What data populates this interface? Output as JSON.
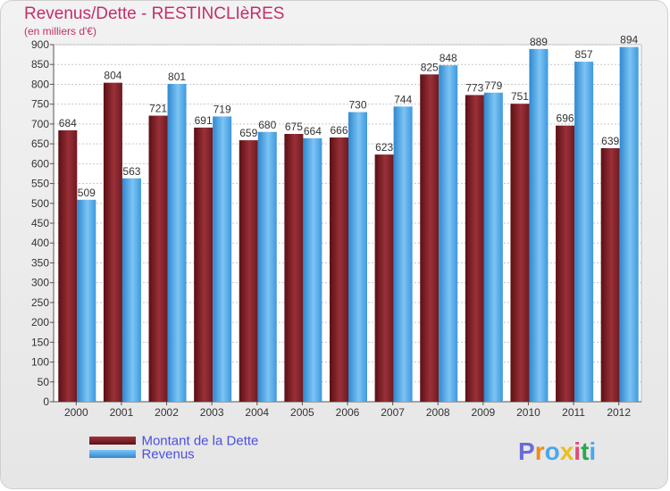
{
  "chart_data": {
    "type": "bar",
    "title": "Revenus/Dette - RESTINCLIèRES",
    "subtitle": "(en milliers d'€)",
    "categories": [
      "2000",
      "2001",
      "2002",
      "2003",
      "2004",
      "2005",
      "2006",
      "2007",
      "2008",
      "2009",
      "2010",
      "2011",
      "2012"
    ],
    "series": [
      {
        "name": "Montant de la Dette",
        "color": "#7a1f25",
        "values": [
          684,
          804,
          721,
          691,
          659,
          675,
          666,
          623,
          825,
          773,
          751,
          696,
          639
        ]
      },
      {
        "name": "Revenus",
        "color": "#4aa8ea",
        "values": [
          509,
          563,
          801,
          719,
          680,
          664,
          730,
          744,
          848,
          779,
          889,
          857,
          894
        ]
      }
    ],
    "y_ticks": [
      "0",
      "50",
      "100",
      "150",
      "200",
      "250",
      "300",
      "350",
      "400",
      "450",
      "500",
      "550",
      "600",
      "650",
      "700",
      "750",
      "800",
      "850",
      "900"
    ],
    "ylim": [
      0,
      900
    ],
    "grid": true,
    "legend": "bottom-left"
  },
  "logo": {
    "text": "Proxiti",
    "colors": [
      "#6a6cd8",
      "#f08a1c",
      "#4aa8ea",
      "#e8c020",
      "#e24b7a",
      "#2aa84a",
      "#4aa8ea"
    ]
  }
}
